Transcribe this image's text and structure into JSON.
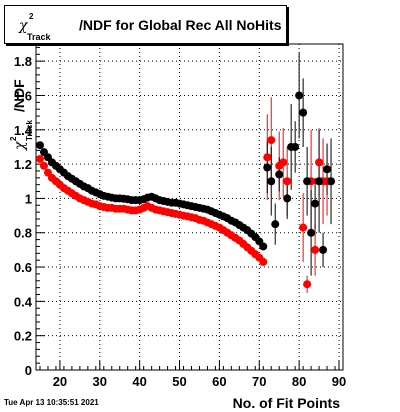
{
  "title": {
    "chi_symbol": "χ",
    "chi_superscript": "2",
    "chi_subscript": "Track",
    "text": "/NDF for Global Rec All NoHits"
  },
  "timestamp": "Tue Apr 13 10:35:51 2021",
  "chart_data": {
    "type": "scatter",
    "xlabel": "No. of Fit Points",
    "ylabel": {
      "chi_symbol": "χ",
      "superscript": "2",
      "subscript": "Track",
      "suffix": "/NDF"
    },
    "xlim": [
      14,
      91
    ],
    "ylim": [
      0,
      1.9
    ],
    "x_ticks": [
      20,
      30,
      40,
      50,
      60,
      70,
      80,
      90
    ],
    "y_ticks": [
      0,
      0.2,
      0.4,
      0.6,
      0.8,
      1,
      1.2,
      1.4,
      1.6,
      1.8
    ],
    "x_tick_labels": [
      "20",
      "30",
      "40",
      "50",
      "60",
      "70",
      "80",
      "90"
    ],
    "y_tick_labels": [
      "0",
      "0.2",
      "0.4",
      "0.6",
      "0.8",
      "1",
      "1.2",
      "1.4",
      "1.6",
      "1.8"
    ],
    "grid": true,
    "series": [
      {
        "color": "#000000",
        "points": [
          {
            "x": 15,
            "y": 1.31
          },
          {
            "x": 16,
            "y": 1.27
          },
          {
            "x": 17,
            "y": 1.24
          },
          {
            "x": 18,
            "y": 1.21
          },
          {
            "x": 19,
            "y": 1.19
          },
          {
            "x": 20,
            "y": 1.17
          },
          {
            "x": 21,
            "y": 1.15
          },
          {
            "x": 22,
            "y": 1.13
          },
          {
            "x": 23,
            "y": 1.115
          },
          {
            "x": 24,
            "y": 1.1
          },
          {
            "x": 25,
            "y": 1.085
          },
          {
            "x": 26,
            "y": 1.07
          },
          {
            "x": 27,
            "y": 1.06
          },
          {
            "x": 28,
            "y": 1.045
          },
          {
            "x": 29,
            "y": 1.035
          },
          {
            "x": 30,
            "y": 1.025
          },
          {
            "x": 31,
            "y": 1.015
          },
          {
            "x": 32,
            "y": 1.01
          },
          {
            "x": 33,
            "y": 1.005
          },
          {
            "x": 34,
            "y": 1.0
          },
          {
            "x": 35,
            "y": 1.0
          },
          {
            "x": 36,
            "y": 0.998
          },
          {
            "x": 37,
            "y": 0.995
          },
          {
            "x": 38,
            "y": 0.99
          },
          {
            "x": 39,
            "y": 0.99
          },
          {
            "x": 40,
            "y": 0.99
          },
          {
            "x": 41,
            "y": 0.995
          },
          {
            "x": 42,
            "y": 1.005
          },
          {
            "x": 43,
            "y": 1.01
          },
          {
            "x": 44,
            "y": 1.0
          },
          {
            "x": 45,
            "y": 0.99
          },
          {
            "x": 46,
            "y": 0.985
          },
          {
            "x": 47,
            "y": 0.98
          },
          {
            "x": 48,
            "y": 0.975
          },
          {
            "x": 49,
            "y": 0.975
          },
          {
            "x": 50,
            "y": 0.97
          },
          {
            "x": 51,
            "y": 0.965
          },
          {
            "x": 52,
            "y": 0.96
          },
          {
            "x": 53,
            "y": 0.955
          },
          {
            "x": 54,
            "y": 0.95
          },
          {
            "x": 55,
            "y": 0.945
          },
          {
            "x": 56,
            "y": 0.94
          },
          {
            "x": 57,
            "y": 0.935
          },
          {
            "x": 58,
            "y": 0.925
          },
          {
            "x": 59,
            "y": 0.915
          },
          {
            "x": 60,
            "y": 0.905
          },
          {
            "x": 61,
            "y": 0.895
          },
          {
            "x": 62,
            "y": 0.885
          },
          {
            "x": 63,
            "y": 0.87
          },
          {
            "x": 64,
            "y": 0.86
          },
          {
            "x": 65,
            "y": 0.845
          },
          {
            "x": 66,
            "y": 0.83
          },
          {
            "x": 67,
            "y": 0.815
          },
          {
            "x": 68,
            "y": 0.795
          },
          {
            "x": 69,
            "y": 0.775
          },
          {
            "x": 70,
            "y": 0.75
          },
          {
            "x": 71,
            "y": 0.72
          },
          {
            "x": 72,
            "y": 1.18,
            "err": 0.15
          },
          {
            "x": 73,
            "y": 1.1,
            "err": 0.2
          },
          {
            "x": 74,
            "y": 0.85,
            "err": 0.12
          },
          {
            "x": 75,
            "y": 1.14,
            "err": 0.1
          },
          {
            "x": 77,
            "y": 1.0,
            "err": 0.12
          },
          {
            "x": 78,
            "y": 1.3,
            "err": 0.25
          },
          {
            "x": 79,
            "y": 1.3,
            "err": 0.15
          },
          {
            "x": 80,
            "y": 1.6,
            "err": 0.25
          },
          {
            "x": 81,
            "y": 1.5,
            "err": 0.2
          },
          {
            "x": 82,
            "y": 1.1,
            "err": 0.2
          },
          {
            "x": 83,
            "y": 0.8,
            "err": 0.25
          },
          {
            "x": 84,
            "y": 0.97,
            "err": 0.15
          },
          {
            "x": 85,
            "y": 1.1,
            "err": 0.3
          },
          {
            "x": 86,
            "y": 0.7,
            "err": 0.1
          },
          {
            "x": 87,
            "y": 1.17,
            "err": 0.15
          },
          {
            "x": 88,
            "y": 1.1,
            "err": 0.25
          }
        ]
      },
      {
        "color": "#ff0000",
        "points": [
          {
            "x": 15,
            "y": 1.23
          },
          {
            "x": 16,
            "y": 1.19
          },
          {
            "x": 17,
            "y": 1.15
          },
          {
            "x": 18,
            "y": 1.12
          },
          {
            "x": 19,
            "y": 1.1
          },
          {
            "x": 20,
            "y": 1.08
          },
          {
            "x": 21,
            "y": 1.06
          },
          {
            "x": 22,
            "y": 1.045
          },
          {
            "x": 23,
            "y": 1.03
          },
          {
            "x": 24,
            "y": 1.015
          },
          {
            "x": 25,
            "y": 1.0
          },
          {
            "x": 26,
            "y": 0.99
          },
          {
            "x": 27,
            "y": 0.98
          },
          {
            "x": 28,
            "y": 0.97
          },
          {
            "x": 29,
            "y": 0.965
          },
          {
            "x": 30,
            "y": 0.955
          },
          {
            "x": 31,
            "y": 0.95
          },
          {
            "x": 32,
            "y": 0.945
          },
          {
            "x": 33,
            "y": 0.945
          },
          {
            "x": 34,
            "y": 0.94
          },
          {
            "x": 35,
            "y": 0.94
          },
          {
            "x": 36,
            "y": 0.94
          },
          {
            "x": 37,
            "y": 0.935
          },
          {
            "x": 38,
            "y": 0.93
          },
          {
            "x": 39,
            "y": 0.93
          },
          {
            "x": 40,
            "y": 0.935
          },
          {
            "x": 41,
            "y": 0.945
          },
          {
            "x": 42,
            "y": 0.955
          },
          {
            "x": 43,
            "y": 0.945
          },
          {
            "x": 44,
            "y": 0.935
          },
          {
            "x": 45,
            "y": 0.93
          },
          {
            "x": 46,
            "y": 0.925
          },
          {
            "x": 47,
            "y": 0.92
          },
          {
            "x": 48,
            "y": 0.915
          },
          {
            "x": 49,
            "y": 0.91
          },
          {
            "x": 50,
            "y": 0.905
          },
          {
            "x": 51,
            "y": 0.9
          },
          {
            "x": 52,
            "y": 0.895
          },
          {
            "x": 53,
            "y": 0.89
          },
          {
            "x": 54,
            "y": 0.885
          },
          {
            "x": 55,
            "y": 0.875
          },
          {
            "x": 56,
            "y": 0.87
          },
          {
            "x": 57,
            "y": 0.86
          },
          {
            "x": 58,
            "y": 0.85
          },
          {
            "x": 59,
            "y": 0.84
          },
          {
            "x": 60,
            "y": 0.83
          },
          {
            "x": 61,
            "y": 0.815
          },
          {
            "x": 62,
            "y": 0.8
          },
          {
            "x": 63,
            "y": 0.785
          },
          {
            "x": 64,
            "y": 0.77
          },
          {
            "x": 65,
            "y": 0.755
          },
          {
            "x": 66,
            "y": 0.735
          },
          {
            "x": 67,
            "y": 0.715
          },
          {
            "x": 68,
            "y": 0.695
          },
          {
            "x": 69,
            "y": 0.675
          },
          {
            "x": 70,
            "y": 0.655
          },
          {
            "x": 71,
            "y": 0.63
          },
          {
            "x": 72,
            "y": 1.24,
            "err": 0.25
          },
          {
            "x": 73,
            "y": 1.34,
            "err": 0.25
          },
          {
            "x": 75,
            "y": 1.19,
            "err": 0.2
          },
          {
            "x": 76,
            "y": 1.21,
            "err": 0.2
          },
          {
            "x": 77,
            "y": 1.1,
            "err": 0.2
          },
          {
            "x": 81,
            "y": 0.83,
            "err": 0.2
          },
          {
            "x": 82,
            "y": 0.5,
            "err": 0.05
          },
          {
            "x": 83,
            "y": 1.1,
            "err": 0.3
          },
          {
            "x": 84,
            "y": 0.7,
            "err": 0.15
          },
          {
            "x": 85,
            "y": 1.21,
            "err": 0.2
          },
          {
            "x": 86,
            "y": 1.1,
            "err": 0.25
          },
          {
            "x": 87,
            "y": 1.1,
            "err": 0.2
          }
        ]
      }
    ]
  }
}
